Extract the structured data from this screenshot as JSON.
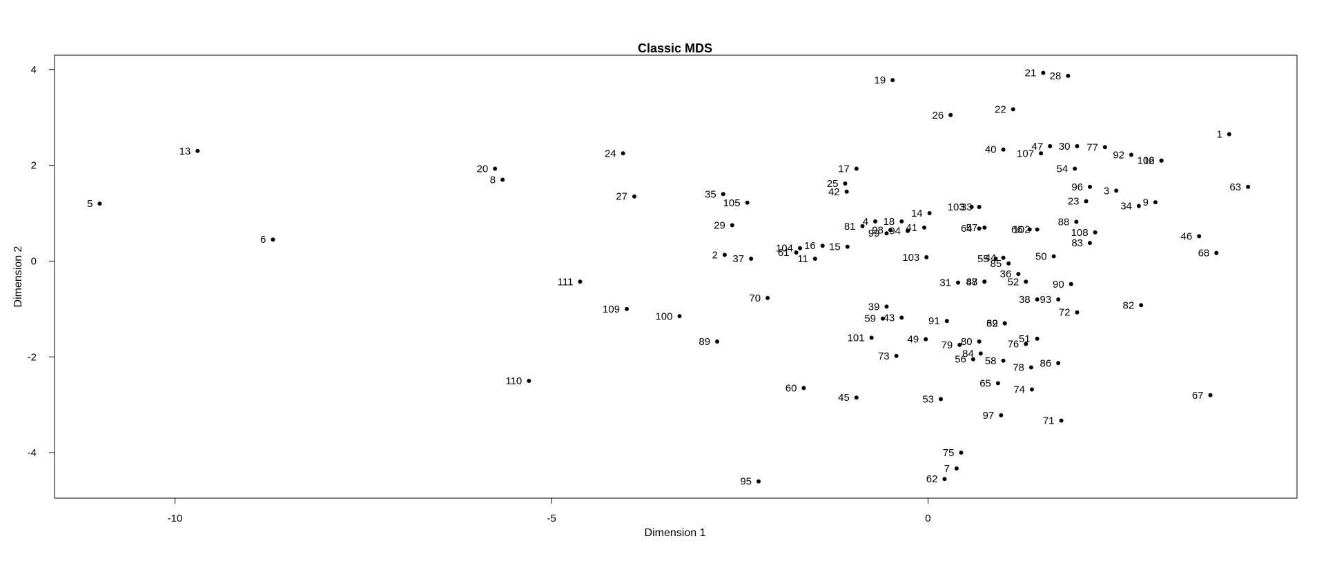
{
  "chart_data": {
    "type": "scatter",
    "title": "Classic MDS",
    "xlabel": "Dimension 1",
    "ylabel": "Dimension 2",
    "xlim": [
      -11.6,
      4.9
    ],
    "ylim": [
      -4.95,
      4.3
    ],
    "xticks": [
      -10,
      -5,
      0
    ],
    "yticks": [
      -4,
      -2,
      0,
      2,
      4
    ],
    "grid": false,
    "legend": "none",
    "colors": {
      "point": "#000000",
      "axis": "#000000",
      "background": "#ffffff"
    },
    "points": [
      {
        "label": "1",
        "x": 4.0,
        "y": 2.65
      },
      {
        "label": "2",
        "x": -2.7,
        "y": 0.13
      },
      {
        "label": "3",
        "x": 2.5,
        "y": 1.47
      },
      {
        "label": "4",
        "x": -0.7,
        "y": 0.83
      },
      {
        "label": "5",
        "x": -11.0,
        "y": 1.2
      },
      {
        "label": "6",
        "x": -8.7,
        "y": 0.45
      },
      {
        "label": "7",
        "x": 0.38,
        "y": -4.33
      },
      {
        "label": "8",
        "x": -5.65,
        "y": 1.7
      },
      {
        "label": "9",
        "x": 3.02,
        "y": 1.23
      },
      {
        "label": "11",
        "x": -1.5,
        "y": 0.05
      },
      {
        "label": "12",
        "x": 3.1,
        "y": 2.1
      },
      {
        "label": "13",
        "x": -9.7,
        "y": 2.3
      },
      {
        "label": "14",
        "x": 0.02,
        "y": 1.0
      },
      {
        "label": "15",
        "x": -1.07,
        "y": 0.3
      },
      {
        "label": "16",
        "x": -1.4,
        "y": 0.32
      },
      {
        "label": "17",
        "x": -0.95,
        "y": 1.93
      },
      {
        "label": "18",
        "x": -0.35,
        "y": 0.83
      },
      {
        "label": "19",
        "x": -0.47,
        "y": 3.78
      },
      {
        "label": "20",
        "x": -5.75,
        "y": 1.93
      },
      {
        "label": "21",
        "x": 1.53,
        "y": 3.93
      },
      {
        "label": "22",
        "x": 1.13,
        "y": 3.17
      },
      {
        "label": "23",
        "x": 2.1,
        "y": 1.25
      },
      {
        "label": "24",
        "x": -4.05,
        "y": 2.25
      },
      {
        "label": "25",
        "x": -1.1,
        "y": 1.62
      },
      {
        "label": "26",
        "x": 0.3,
        "y": 3.05
      },
      {
        "label": "27",
        "x": -3.9,
        "y": 1.35
      },
      {
        "label": "28",
        "x": 1.86,
        "y": 3.87
      },
      {
        "label": "29",
        "x": -2.6,
        "y": 0.75
      },
      {
        "label": "30",
        "x": 1.98,
        "y": 2.4
      },
      {
        "label": "31",
        "x": 0.4,
        "y": -0.45
      },
      {
        "label": "34",
        "x": 2.8,
        "y": 1.15
      },
      {
        "label": "35",
        "x": -2.72,
        "y": 1.4
      },
      {
        "label": "36",
        "x": 1.2,
        "y": -0.27
      },
      {
        "label": "37",
        "x": -2.35,
        "y": 0.05
      },
      {
        "label": "38",
        "x": 1.45,
        "y": -0.8
      },
      {
        "label": "39",
        "x": -0.55,
        "y": -0.95
      },
      {
        "label": "40",
        "x": 1.0,
        "y": 2.33
      },
      {
        "label": "41",
        "x": -0.05,
        "y": 0.7
      },
      {
        "label": "42",
        "x": -1.08,
        "y": 1.45
      },
      {
        "label": "43",
        "x": -0.35,
        "y": -1.18
      },
      {
        "label": "44",
        "x": 1.0,
        "y": 0.07
      },
      {
        "label": "45",
        "x": -0.95,
        "y": -2.85
      },
      {
        "label": "46",
        "x": 3.6,
        "y": 0.52
      },
      {
        "label": "47",
        "x": 1.62,
        "y": 2.4
      },
      {
        "label": "48",
        "x": 0.75,
        "y": -0.43
      },
      {
        "label": "49",
        "x": -0.03,
        "y": -1.63
      },
      {
        "label": "50",
        "x": 1.67,
        "y": 0.1
      },
      {
        "label": "51",
        "x": 1.45,
        "y": -1.62
      },
      {
        "label": "52",
        "x": 1.3,
        "y": -0.43
      },
      {
        "label": "53",
        "x": 0.17,
        "y": -2.88
      },
      {
        "label": "54",
        "x": 1.95,
        "y": 1.93
      },
      {
        "label": "55",
        "x": 0.9,
        "y": 0.05
      },
      {
        "label": "56",
        "x": 0.6,
        "y": -2.05
      },
      {
        "label": "57",
        "x": 0.75,
        "y": 0.7
      },
      {
        "label": "58",
        "x": 1.0,
        "y": -2.08
      },
      {
        "label": "59",
        "x": -0.6,
        "y": -1.2
      },
      {
        "label": "60",
        "x": -1.65,
        "y": -2.65
      },
      {
        "label": "61",
        "x": -1.75,
        "y": 0.18
      },
      {
        "label": "62",
        "x": 0.22,
        "y": -4.55
      },
      {
        "label": "63",
        "x": 4.25,
        "y": 1.55
      },
      {
        "label": "64",
        "x": 0.68,
        "y": 0.68
      },
      {
        "label": "65",
        "x": 0.93,
        "y": -2.55
      },
      {
        "label": "66",
        "x": 1.35,
        "y": 0.66
      },
      {
        "label": "67",
        "x": 3.75,
        "y": -2.8
      },
      {
        "label": "68",
        "x": 3.83,
        "y": 0.17
      },
      {
        "label": "69",
        "x": 1.02,
        "y": -1.3
      },
      {
        "label": "70",
        "x": -2.13,
        "y": -0.77
      },
      {
        "label": "71",
        "x": 1.77,
        "y": -3.33
      },
      {
        "label": "72",
        "x": 1.98,
        "y": -1.07
      },
      {
        "label": "73",
        "x": -0.42,
        "y": -1.98
      },
      {
        "label": "74",
        "x": 1.38,
        "y": -2.68
      },
      {
        "label": "75",
        "x": 0.44,
        "y": -4.0
      },
      {
        "label": "76",
        "x": 1.3,
        "y": -1.73
      },
      {
        "label": "77",
        "x": 2.35,
        "y": 2.38
      },
      {
        "label": "78",
        "x": 1.37,
        "y": -2.22
      },
      {
        "label": "79",
        "x": 0.42,
        "y": -1.75
      },
      {
        "label": "80",
        "x": 0.68,
        "y": -1.68
      },
      {
        "label": "81",
        "x": -0.87,
        "y": 0.73
      },
      {
        "label": "82",
        "x": 2.83,
        "y": -0.92
      },
      {
        "label": "83",
        "x": 2.15,
        "y": 0.38
      },
      {
        "label": "84",
        "x": 0.7,
        "y": -1.93
      },
      {
        "label": "85",
        "x": 1.07,
        "y": -0.05
      },
      {
        "label": "86",
        "x": 1.73,
        "y": -2.13
      },
      {
        "label": "87",
        "x": 0.75,
        "y": -0.43
      },
      {
        "label": "88",
        "x": 1.97,
        "y": 0.82
      },
      {
        "label": "89",
        "x": -2.8,
        "y": -1.68
      },
      {
        "label": "90",
        "x": 1.9,
        "y": -0.48
      },
      {
        "label": "91",
        "x": 0.25,
        "y": -1.25
      },
      {
        "label": "92",
        "x": 2.7,
        "y": 2.22
      },
      {
        "label": "93",
        "x": 1.73,
        "y": -0.8
      },
      {
        "label": "94",
        "x": -0.27,
        "y": 0.63
      },
      {
        "label": "95",
        "x": -2.25,
        "y": -4.6
      },
      {
        "label": "96",
        "x": 2.15,
        "y": 1.55
      },
      {
        "label": "97",
        "x": 0.97,
        "y": -3.22
      },
      {
        "label": "98",
        "x": -0.5,
        "y": 0.65
      },
      {
        "label": "99",
        "x": -0.55,
        "y": 0.58
      },
      {
        "label": "100",
        "x": -3.3,
        "y": -1.15
      },
      {
        "label": "101",
        "x": -0.75,
        "y": -1.6
      },
      {
        "label": "102",
        "x": 1.45,
        "y": 0.66
      },
      {
        "label": "103",
        "x": -0.02,
        "y": 0.08
      },
      {
        "label": "104",
        "x": -1.7,
        "y": 0.27
      },
      {
        "label": "105",
        "x": -2.4,
        "y": 1.22
      },
      {
        "label": "106",
        "x": 3.1,
        "y": 2.1
      },
      {
        "label": "107",
        "x": 1.5,
        "y": 2.25
      },
      {
        "label": "108",
        "x": 2.22,
        "y": 0.6
      },
      {
        "label": "109",
        "x": -4.0,
        "y": -1.0
      },
      {
        "label": "110",
        "x": -5.3,
        "y": -2.5
      },
      {
        "label": "111",
        "x": -4.62,
        "y": -0.43
      },
      {
        "label": "103",
        "x": 0.58,
        "y": 1.13
      },
      {
        "label": "33",
        "x": 0.68,
        "y": 1.13
      },
      {
        "label": "32",
        "x": 1.02,
        "y": -1.3
      }
    ]
  }
}
